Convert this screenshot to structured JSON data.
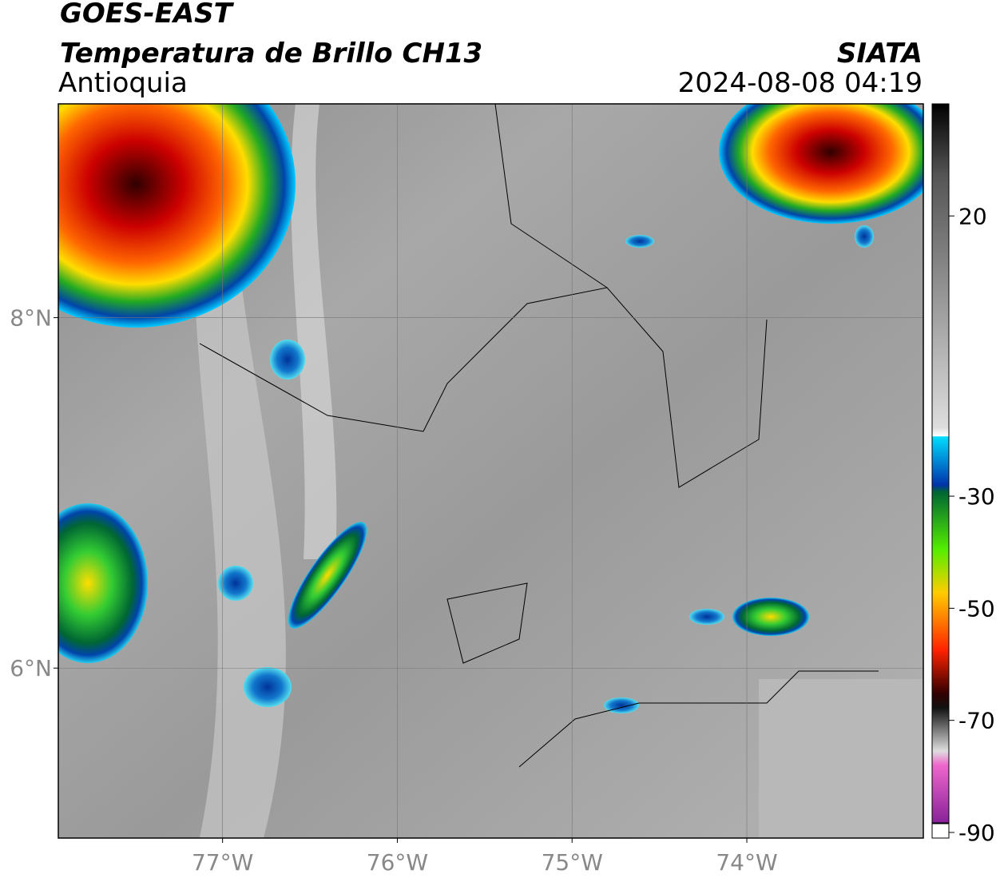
{
  "header": {
    "satellite": "GOES-EAST",
    "product": "Temperatura de Brillo CH13",
    "region": "Antioquia",
    "source": "SIATA",
    "datetime": "2024-08-08 04:19"
  },
  "map": {
    "xlim": [
      -77.94,
      -72.99
    ],
    "ylim": [
      5.03,
      9.22
    ],
    "xticks": [
      {
        "value": -77,
        "label": "77°W"
      },
      {
        "value": -76,
        "label": "76°W"
      },
      {
        "value": -75,
        "label": "75°W"
      },
      {
        "value": -74,
        "label": "74°W"
      }
    ],
    "yticks": [
      {
        "value": 8,
        "label": "8°N"
      },
      {
        "value": 6,
        "label": "6°N"
      }
    ],
    "grid": true
  },
  "colorbar": {
    "range": [
      -91,
      40
    ],
    "ticks": [
      20,
      -30,
      -50,
      -70,
      -90
    ]
  }
}
